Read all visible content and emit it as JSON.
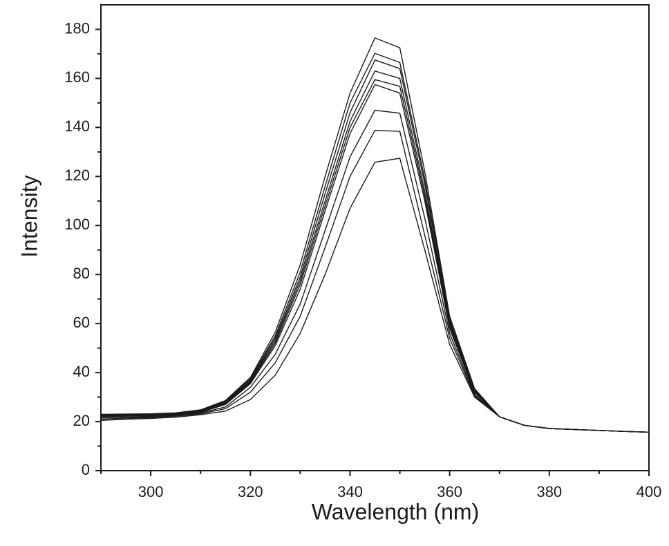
{
  "chart_data": {
    "type": "line",
    "xlabel": "Wavelength (nm)",
    "ylabel": "Intensity",
    "xlim": [
      290,
      400
    ],
    "ylim": [
      0,
      190
    ],
    "xticks": [
      300,
      320,
      340,
      360,
      380,
      400
    ],
    "yticks": [
      0,
      20,
      40,
      60,
      80,
      100,
      120,
      140,
      160,
      180
    ],
    "grid": false,
    "legend": "none",
    "x": [
      290,
      295,
      300,
      305,
      310,
      315,
      320,
      325,
      330,
      335,
      340,
      345,
      350,
      355,
      360,
      365,
      370,
      375,
      380,
      385,
      390,
      395,
      400
    ],
    "series": [
      {
        "values": [
          20.5,
          21.0,
          21.3,
          21.8,
          22.8,
          24.3,
          29.0,
          39.0,
          56.0,
          80.0,
          107.0,
          125.8,
          127.4,
          90.0,
          51.5,
          30.0,
          22.0,
          18.5,
          17.2,
          16.8,
          16.4,
          16.0,
          15.7
        ]
      },
      {
        "values": [
          21.0,
          21.4,
          21.7,
          22.2,
          23.2,
          25.3,
          32.0,
          44.0,
          63.0,
          91.0,
          120.0,
          138.8,
          138.4,
          96.0,
          54.0,
          30.5,
          22.0,
          18.5,
          17.2,
          16.8,
          16.4,
          16.0,
          15.7
        ]
      },
      {
        "values": [
          21.5,
          21.8,
          22.0,
          22.5,
          23.5,
          26.0,
          34.0,
          47.5,
          68.0,
          98.0,
          128.0,
          147.0,
          145.8,
          103.0,
          56.0,
          31.0,
          22.0,
          18.5,
          17.2,
          16.8,
          16.4,
          16.0,
          15.7
        ]
      },
      {
        "values": [
          22.0,
          22.2,
          22.3,
          22.6,
          23.8,
          27.0,
          35.5,
          51.0,
          74.0,
          106.0,
          137.5,
          157.5,
          154.0,
          110.0,
          58.0,
          31.8,
          22.0,
          18.5,
          17.2,
          16.8,
          16.4,
          16.0,
          15.7
        ]
      },
      {
        "values": [
          22.2,
          22.4,
          22.5,
          22.8,
          24.0,
          27.3,
          36.0,
          52.0,
          76.0,
          108.0,
          140.0,
          159.5,
          156.8,
          112.0,
          59.0,
          32.0,
          22.0,
          18.5,
          17.2,
          16.8,
          16.4,
          16.0,
          15.7
        ]
      },
      {
        "values": [
          22.4,
          22.6,
          22.7,
          23.0,
          24.2,
          27.6,
          36.5,
          53.0,
          77.5,
          110.0,
          142.5,
          163.0,
          160.0,
          114.0,
          60.0,
          32.3,
          22.0,
          18.5,
          17.2,
          16.8,
          16.4,
          16.0,
          15.7
        ]
      },
      {
        "values": [
          22.6,
          22.8,
          22.9,
          23.2,
          24.4,
          28.0,
          37.0,
          54.0,
          79.0,
          113.0,
          146.0,
          167.5,
          164.0,
          117.0,
          61.0,
          32.6,
          22.0,
          18.5,
          17.2,
          16.8,
          16.4,
          16.0,
          15.7
        ]
      },
      {
        "values": [
          22.8,
          23.0,
          23.1,
          23.4,
          24.6,
          28.3,
          37.6,
          55.0,
          81.0,
          116.0,
          150.0,
          170.2,
          166.5,
          119.0,
          62.0,
          33.0,
          22.0,
          18.5,
          17.2,
          16.8,
          16.4,
          16.0,
          15.7
        ]
      },
      {
        "values": [
          23.0,
          23.1,
          23.2,
          23.6,
          24.8,
          28.6,
          38.0,
          56.5,
          84.0,
          120.0,
          154.0,
          176.5,
          172.5,
          122.0,
          63.0,
          33.5,
          22.0,
          18.5,
          17.2,
          16.8,
          16.4,
          16.0,
          15.7
        ]
      }
    ]
  }
}
